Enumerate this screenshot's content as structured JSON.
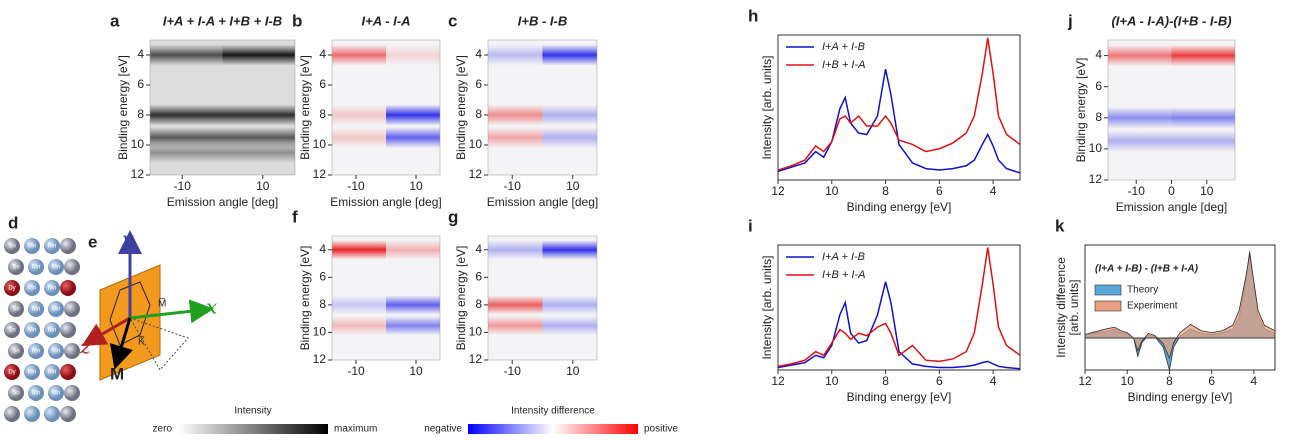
{
  "chart_data": [
    {
      "type": "heatmap",
      "label": "a",
      "title": "I+A + I-A + I+B + I-B",
      "xlabel": "Emission angle [deg]",
      "ylabel": "Binding energy [eV]",
      "colormap": "gray",
      "xlim": [
        -18,
        18
      ],
      "xticks": [
        -10,
        10
      ],
      "ylim": [
        12,
        3
      ],
      "yticks": [
        4,
        6,
        8,
        10,
        12
      ],
      "energies": [
        4,
        8,
        9.5,
        10.5
      ],
      "left": [
        0.65,
        0.8,
        0.6,
        0.35
      ],
      "right": [
        0.9,
        0.8,
        0.6,
        0.35
      ]
    },
    {
      "type": "heatmap",
      "label": "b",
      "title": "I+A - I-A",
      "xlabel": "Emission angle [deg]",
      "ylabel": "Binding energy [eV]",
      "colormap": "diverging",
      "xlim": [
        -18,
        18
      ],
      "xticks": [
        -10,
        10
      ],
      "ylim": [
        12,
        3
      ],
      "yticks": [
        4,
        6,
        8,
        10,
        12
      ],
      "energies": [
        4,
        8,
        9.5
      ],
      "left": [
        0.6,
        0.2,
        0.2
      ],
      "right": [
        0.15,
        -0.85,
        -0.65
      ]
    },
    {
      "type": "heatmap",
      "label": "c",
      "title": "I+B - I-B",
      "xlabel": "Emission angle [deg]",
      "ylabel": "Binding energy [eV]",
      "colormap": "diverging",
      "xlim": [
        -18,
        18
      ],
      "xticks": [
        -10,
        10
      ],
      "ylim": [
        12,
        3
      ],
      "yticks": [
        4,
        6,
        8,
        10,
        12
      ],
      "energies": [
        4,
        8,
        9.5
      ],
      "left": [
        -0.25,
        0.45,
        0.35
      ],
      "right": [
        -0.85,
        -0.3,
        -0.3
      ]
    },
    {
      "type": "heatmap",
      "label": "f",
      "ylabel": "Binding energy [eV]",
      "colormap": "diverging",
      "xlim": [
        -18,
        18
      ],
      "xticks": [
        -10,
        10
      ],
      "ylim": [
        12,
        3
      ],
      "yticks": [
        4,
        6,
        8,
        10,
        12
      ],
      "energies": [
        4,
        8,
        9.5
      ],
      "left": [
        0.9,
        -0.2,
        0.25
      ],
      "right": [
        0.3,
        -0.65,
        -0.5
      ]
    },
    {
      "type": "heatmap",
      "label": "g",
      "ylabel": "Binding energy [eV]",
      "colormap": "diverging",
      "xlim": [
        -18,
        18
      ],
      "xticks": [
        -10,
        10
      ],
      "ylim": [
        12,
        3
      ],
      "yticks": [
        4,
        6,
        8,
        10,
        12
      ],
      "energies": [
        4,
        8,
        9.5
      ],
      "left": [
        -0.3,
        0.65,
        0.4
      ],
      "right": [
        -0.85,
        -0.3,
        -0.3
      ]
    },
    {
      "type": "heatmap",
      "label": "j",
      "title": "(I+A - I-A)-(I+B - I-B)",
      "xlabel": "Emission angle [deg]",
      "ylabel": "Binding energy [eV]",
      "colormap": "diverging",
      "xlim": [
        -18,
        18
      ],
      "xticks": [
        -10,
        0,
        10
      ],
      "ylim": [
        12,
        3
      ],
      "yticks": [
        4,
        6,
        8,
        10,
        12
      ],
      "energies": [
        4,
        8,
        9.5
      ],
      "left": [
        0.55,
        -0.45,
        -0.3
      ],
      "right": [
        0.8,
        -0.5,
        -0.3
      ]
    },
    {
      "type": "line",
      "label": "h",
      "xlabel": "Binding energy [eV]",
      "ylabel": "Intensity [arb. units]",
      "xlim": [
        12,
        3
      ],
      "xticks": [
        12,
        10,
        8,
        6,
        4
      ],
      "ylim": [
        0,
        1.02
      ],
      "x": [
        12,
        11.5,
        11,
        10.6,
        10.3,
        10,
        9.7,
        9.5,
        9.3,
        9,
        8.7,
        8.3,
        8,
        7.8,
        7.5,
        7,
        6.5,
        6,
        5.5,
        5,
        4.7,
        4.4,
        4.2,
        4,
        3.8,
        3.5,
        3
      ],
      "series": [
        {
          "name": "I+A + I-B",
          "color": "#1010d0",
          "values": [
            0.06,
            0.09,
            0.12,
            0.2,
            0.16,
            0.27,
            0.5,
            0.58,
            0.4,
            0.33,
            0.32,
            0.45,
            0.78,
            0.6,
            0.25,
            0.12,
            0.08,
            0.07,
            0.08,
            0.1,
            0.14,
            0.25,
            0.32,
            0.24,
            0.14,
            0.08,
            0.05
          ]
        },
        {
          "name": "I+B + I-A",
          "color": "#e01010",
          "values": [
            0.07,
            0.1,
            0.14,
            0.24,
            0.2,
            0.27,
            0.43,
            0.45,
            0.4,
            0.45,
            0.38,
            0.38,
            0.45,
            0.4,
            0.28,
            0.25,
            0.2,
            0.22,
            0.26,
            0.33,
            0.45,
            0.75,
            1.0,
            0.75,
            0.45,
            0.32,
            0.25
          ]
        }
      ]
    },
    {
      "type": "line",
      "label": "i",
      "xlabel": "Binding energy [eV]",
      "ylabel": "Intensity [arb. units]",
      "xlim": [
        12,
        3
      ],
      "xticks": [
        12,
        10,
        8,
        6,
        4
      ],
      "ylim": [
        0,
        1.02
      ],
      "x": [
        12,
        11.5,
        11,
        10.6,
        10.3,
        10,
        9.7,
        9.5,
        9.3,
        9,
        8.7,
        8.3,
        8,
        7.8,
        7.5,
        7,
        6.5,
        6,
        5.5,
        5,
        4.7,
        4.4,
        4.2,
        4,
        3.8,
        3.5,
        3
      ],
      "series": [
        {
          "name": "I+A + I-B",
          "color": "#1010d0",
          "values": [
            0.02,
            0.04,
            0.06,
            0.12,
            0.1,
            0.2,
            0.45,
            0.55,
            0.3,
            0.22,
            0.24,
            0.45,
            0.72,
            0.55,
            0.15,
            0.05,
            0.03,
            0.02,
            0.02,
            0.03,
            0.04,
            0.06,
            0.07,
            0.05,
            0.03,
            0.02,
            0.01
          ]
        },
        {
          "name": "I+B + I-A",
          "color": "#e01010",
          "values": [
            0.03,
            0.05,
            0.08,
            0.15,
            0.12,
            0.22,
            0.33,
            0.3,
            0.25,
            0.3,
            0.28,
            0.35,
            0.38,
            0.3,
            0.12,
            0.2,
            0.08,
            0.07,
            0.09,
            0.15,
            0.3,
            0.7,
            1.0,
            0.7,
            0.35,
            0.2,
            0.12
          ]
        }
      ]
    },
    {
      "type": "area",
      "label": "k",
      "legend_title": "(I+A + I-B) - (I+B + I-A)",
      "xlabel": "Binding energy [eV]",
      "ylabel": [
        "Intensity difference",
        "[arb. units]"
      ],
      "xlim": [
        12,
        3
      ],
      "xticks": [
        12,
        10,
        8,
        6,
        4
      ],
      "ylim": [
        -0.35,
        1.02
      ],
      "x": [
        12,
        11.5,
        11,
        10.6,
        10.3,
        10,
        9.7,
        9.5,
        9.3,
        9,
        8.7,
        8.3,
        8,
        7.8,
        7.5,
        7,
        6.5,
        6,
        5.5,
        5,
        4.7,
        4.4,
        4.2,
        4,
        3.8,
        3.5,
        3
      ],
      "series": [
        {
          "name": "Theory",
          "color": "#5aa8d8",
          "values": [
            0.04,
            0.06,
            0.07,
            0.1,
            0.06,
            0.05,
            0.0,
            -0.2,
            -0.05,
            0.03,
            0.02,
            -0.1,
            -0.35,
            -0.1,
            0.02,
            0.1,
            0.05,
            0.04,
            0.06,
            0.1,
            0.22,
            0.6,
            0.95,
            0.6,
            0.25,
            0.1,
            0.05
          ]
        },
        {
          "name": "Experiment",
          "color": "#e8a080",
          "values": [
            0.04,
            0.07,
            0.1,
            0.12,
            0.08,
            0.06,
            0.0,
            -0.14,
            -0.03,
            0.05,
            0.03,
            -0.06,
            -0.22,
            -0.05,
            0.06,
            0.15,
            0.08,
            0.06,
            0.08,
            0.14,
            0.3,
            0.65,
            0.92,
            0.62,
            0.3,
            0.14,
            0.08
          ]
        }
      ]
    }
  ],
  "crystal": {
    "label": "d",
    "atoms": [
      "Sn",
      "Mn",
      "Dy"
    ]
  },
  "axes_diagram": {
    "label": "e",
    "axes": [
      "y",
      "x",
      "z"
    ],
    "points": [
      "M",
      "M̅",
      "K̅"
    ]
  },
  "colorbars": [
    {
      "title": "Intensity",
      "min_label": "zero",
      "max_label": "maximum"
    },
    {
      "title": "Intensity difference",
      "min_label": "negative",
      "max_label": "positive"
    }
  ]
}
